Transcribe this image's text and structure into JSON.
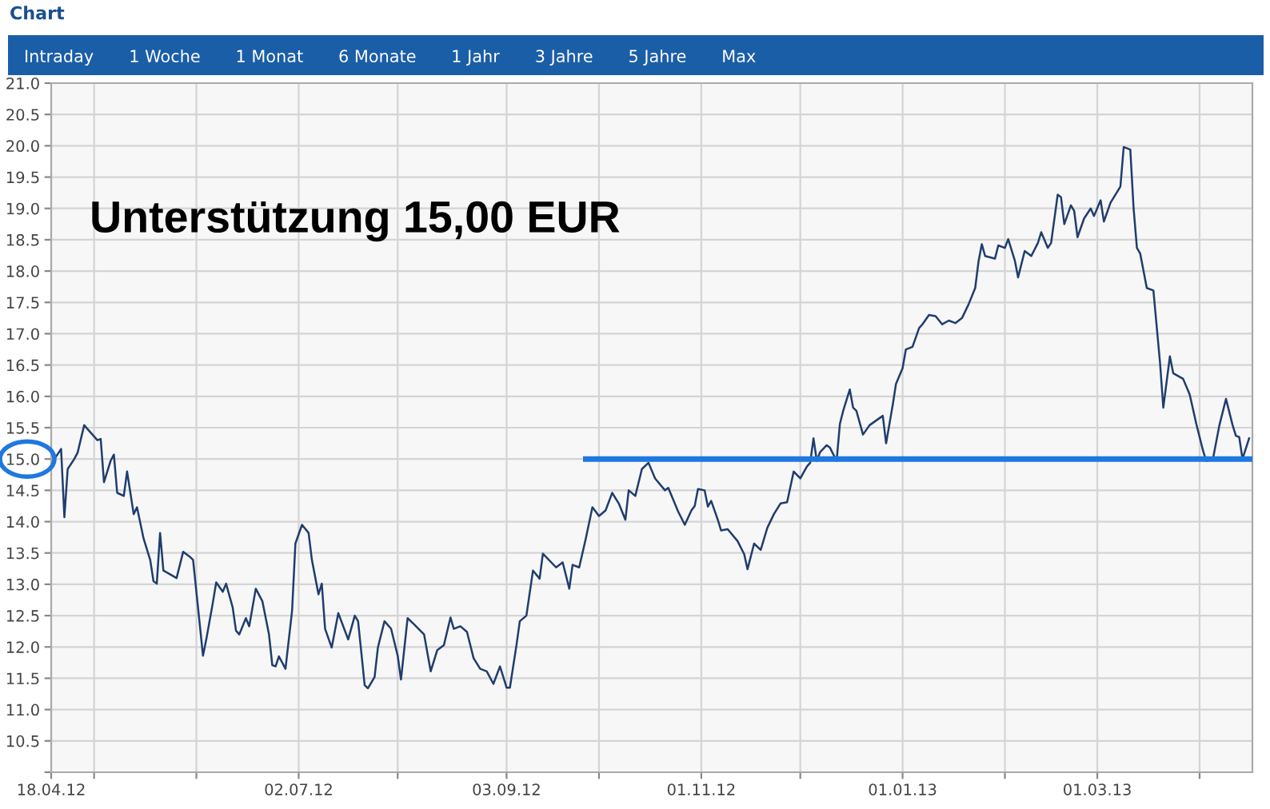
{
  "chart_data": {
    "type": "line",
    "title": "Chart",
    "annotations": [
      "Unterstützung 15,00 EUR",
      "Intraday",
      "1 Woche",
      "1 Monat",
      "6 Monate",
      "1 Jahr",
      "3 Jahre",
      "5 Jahre",
      "Max"
    ],
    "series": [
      {
        "color": "#1f3d6e",
        "x": [
          "2012-04-18",
          "2012-04-19",
          "2012-04-21",
          "2012-04-22",
          "2012-04-23",
          "2012-04-25",
          "2012-04-26",
          "2012-04-28",
          "2012-04-29",
          "2012-05-02",
          "2012-05-03",
          "2012-05-04",
          "2012-05-06",
          "2012-05-07",
          "2012-05-08",
          "2012-05-10",
          "2012-05-11",
          "2012-05-13",
          "2012-05-14",
          "2012-05-16",
          "2012-05-18",
          "2012-05-19",
          "2012-05-20",
          "2012-05-21",
          "2012-05-22",
          "2012-05-26",
          "2012-05-28",
          "2012-05-30",
          "2012-05-31",
          "2012-06-01",
          "2012-06-03",
          "2012-06-04",
          "2012-06-06",
          "2012-06-07",
          "2012-06-09",
          "2012-06-10",
          "2012-06-12",
          "2012-06-13",
          "2012-06-14",
          "2012-06-16",
          "2012-06-17",
          "2012-06-19",
          "2012-06-21",
          "2012-06-23",
          "2012-06-24",
          "2012-06-25",
          "2012-06-26",
          "2012-06-28",
          "2012-06-30",
          "2012-07-01",
          "2012-07-03",
          "2012-07-05",
          "2012-07-06",
          "2012-07-08",
          "2012-07-09",
          "2012-07-10",
          "2012-07-12",
          "2012-07-14",
          "2012-07-17",
          "2012-07-19",
          "2012-07-20",
          "2012-07-22",
          "2012-07-23",
          "2012-07-25",
          "2012-07-26",
          "2012-07-28",
          "2012-07-30",
          "2012-08-01",
          "2012-08-02",
          "2012-08-04",
          "2012-08-06",
          "2012-08-09",
          "2012-08-11",
          "2012-08-13",
          "2012-08-15",
          "2012-08-17",
          "2012-08-18",
          "2012-08-20",
          "2012-08-22",
          "2012-08-24",
          "2012-08-26",
          "2012-08-28",
          "2012-08-30",
          "2012-09-01",
          "2012-09-03",
          "2012-09-04",
          "2012-09-06",
          "2012-09-07",
          "2012-09-09",
          "2012-09-11",
          "2012-09-13",
          "2012-09-14",
          "2012-09-18",
          "2012-09-20",
          "2012-09-22",
          "2012-09-23",
          "2012-09-25",
          "2012-09-27",
          "2012-09-29",
          "2012-10-01",
          "2012-10-03",
          "2012-10-05",
          "2012-10-07",
          "2012-10-09",
          "2012-10-10",
          "2012-10-12",
          "2012-10-14",
          "2012-10-16",
          "2012-10-18",
          "2012-10-21",
          "2012-10-22",
          "2012-10-25",
          "2012-10-27",
          "2012-10-29",
          "2012-10-30",
          "2012-10-31",
          "2012-11-02",
          "2012-11-03",
          "2012-11-04",
          "2012-11-06",
          "2012-11-07",
          "2012-11-09",
          "2012-11-12",
          "2012-11-14",
          "2012-11-15",
          "2012-11-17",
          "2012-11-19",
          "2012-11-21",
          "2012-11-23",
          "2012-11-25",
          "2012-11-27",
          "2012-11-29",
          "2012-12-01",
          "2012-12-03",
          "2012-12-04",
          "2012-12-05",
          "2012-12-06",
          "2012-12-07",
          "2012-12-09",
          "2012-12-10",
          "2012-12-12",
          "2012-12-13",
          "2012-12-14",
          "2012-12-16",
          "2012-12-17",
          "2012-12-18",
          "2012-12-20",
          "2012-12-22",
          "2012-12-26",
          "2012-12-27",
          "2012-12-29",
          "2012-12-30",
          "2013-01-01",
          "2013-01-02",
          "2013-01-04",
          "2013-01-06",
          "2013-01-07",
          "2013-01-09",
          "2013-01-11",
          "2013-01-13",
          "2013-01-15",
          "2013-01-17",
          "2013-01-19",
          "2013-01-21",
          "2013-01-23",
          "2013-01-24",
          "2013-01-25",
          "2013-01-26",
          "2013-01-29",
          "2013-01-30",
          "2013-02-01",
          "2013-02-02",
          "2013-02-04",
          "2013-02-05",
          "2013-02-07",
          "2013-02-09",
          "2013-02-11",
          "2013-02-12",
          "2013-02-14",
          "2013-02-15",
          "2013-02-17",
          "2013-02-18",
          "2013-02-19",
          "2013-02-21",
          "2013-02-22",
          "2013-02-23",
          "2013-02-25",
          "2013-02-27",
          "2013-02-28",
          "2013-03-02",
          "2013-03-03",
          "2013-03-05",
          "2013-03-08",
          "2013-03-09",
          "2013-03-11",
          "2013-03-12",
          "2013-03-13",
          "2013-03-14",
          "2013-03-16",
          "2013-03-18",
          "2013-03-20",
          "2013-03-21",
          "2013-03-23",
          "2013-03-24",
          "2013-03-27",
          "2013-03-29",
          "2013-03-31",
          "2013-04-02",
          "2013-04-03",
          "2013-04-05",
          "2013-04-07",
          "2013-04-09",
          "2013-04-11",
          "2013-04-12",
          "2013-04-13",
          "2013-04-14",
          "2013-04-16"
        ],
        "values": [
          14.88,
          15.0,
          15.16,
          14.07,
          14.84,
          15.0,
          15.1,
          15.54,
          15.48,
          15.3,
          15.32,
          14.63,
          14.97,
          15.07,
          14.46,
          14.41,
          14.8,
          14.12,
          14.23,
          13.73,
          13.39,
          13.05,
          13.01,
          13.82,
          13.22,
          13.1,
          13.52,
          13.44,
          13.39,
          12.88,
          11.86,
          12.12,
          12.71,
          13.03,
          12.88,
          13.01,
          12.63,
          12.26,
          12.2,
          12.46,
          12.33,
          12.93,
          12.73,
          12.2,
          11.71,
          11.69,
          11.85,
          11.65,
          12.58,
          13.65,
          13.95,
          13.82,
          13.39,
          12.84,
          13.01,
          12.29,
          11.99,
          12.54,
          12.12,
          12.5,
          12.41,
          11.39,
          11.34,
          11.52,
          11.99,
          12.41,
          12.29,
          11.86,
          11.48,
          12.46,
          12.36,
          12.2,
          11.61,
          11.95,
          12.03,
          12.47,
          12.29,
          12.33,
          12.24,
          11.82,
          11.65,
          11.61,
          11.41,
          11.69,
          11.35,
          11.35,
          12.03,
          12.41,
          12.5,
          13.22,
          13.09,
          13.49,
          13.27,
          13.35,
          12.93,
          13.31,
          13.27,
          13.73,
          14.23,
          14.09,
          14.18,
          14.46,
          14.29,
          14.03,
          14.5,
          14.41,
          14.84,
          14.94,
          14.69,
          14.5,
          14.54,
          14.16,
          13.95,
          14.18,
          14.25,
          14.52,
          14.5,
          14.24,
          14.33,
          14.03,
          13.86,
          13.88,
          13.69,
          13.48,
          13.24,
          13.65,
          13.55,
          13.9,
          14.12,
          14.29,
          14.31,
          14.8,
          14.69,
          14.88,
          14.94,
          15.33,
          14.97,
          15.11,
          15.22,
          15.18,
          14.97,
          15.56,
          15.77,
          16.11,
          15.82,
          15.77,
          15.39,
          15.54,
          15.69,
          15.25,
          15.86,
          16.2,
          16.45,
          16.75,
          16.79,
          17.09,
          17.15,
          17.3,
          17.28,
          17.15,
          17.21,
          17.17,
          17.25,
          17.47,
          17.73,
          18.15,
          18.43,
          18.24,
          18.2,
          18.41,
          18.37,
          18.51,
          18.17,
          17.9,
          18.32,
          18.24,
          18.45,
          18.62,
          18.37,
          18.45,
          19.22,
          19.18,
          18.75,
          19.05,
          18.96,
          18.54,
          18.84,
          19.0,
          18.88,
          19.13,
          18.79,
          19.09,
          19.35,
          19.98,
          19.94,
          19.0,
          18.37,
          18.28,
          17.73,
          17.69,
          16.54,
          15.82,
          16.64,
          16.37,
          16.28,
          16.03,
          15.56,
          15.14,
          14.97,
          14.99,
          15.54,
          15.96,
          15.54,
          15.37,
          15.35,
          15.0,
          15.33
        ]
      },
      {
        "color": "#1e78e0",
        "x": [
          "2012-09-27",
          "2013-04-17"
        ],
        "values": [
          15.0,
          15.0
        ]
      }
    ],
    "xlim": [
      "2012-04-18",
      "2013-04-17"
    ],
    "xticks": [
      {
        "value": "2012-04-18",
        "label": "18.04.12"
      },
      {
        "value": "2012-05-01",
        "label": null
      },
      {
        "value": "2012-06-01",
        "label": null
      },
      {
        "value": "2012-07-02",
        "label": "02.07.12"
      },
      {
        "value": "2012-08-01",
        "label": null
      },
      {
        "value": "2012-09-03",
        "label": "03.09.12"
      },
      {
        "value": "2012-10-01",
        "label": null
      },
      {
        "value": "2012-11-01",
        "label": "01.11.12"
      },
      {
        "value": "2012-12-01",
        "label": null
      },
      {
        "value": "2013-01-01",
        "label": "01.01.13"
      },
      {
        "value": "2013-02-01",
        "label": null
      },
      {
        "value": "2013-03-01",
        "label": "01.03.13"
      },
      {
        "value": "2013-04-01",
        "label": null
      }
    ],
    "ylim": [
      10,
      21
    ],
    "yticks": [
      {
        "value": 10,
        "label": null
      },
      {
        "value": 10.5,
        "label": "10.5"
      },
      {
        "value": 11,
        "label": "11.0"
      },
      {
        "value": 11.5,
        "label": "11.5"
      },
      {
        "value": 12,
        "label": "12.0"
      },
      {
        "value": 12.5,
        "label": "12.5"
      },
      {
        "value": 13,
        "label": "13.0"
      },
      {
        "value": 13.5,
        "label": "13.5"
      },
      {
        "value": 14,
        "label": "14.0"
      },
      {
        "value": 14.5,
        "label": "14.5"
      },
      {
        "value": 15,
        "label": "15.0"
      },
      {
        "value": 15.5,
        "label": "15.5"
      },
      {
        "value": 16,
        "label": "16.0"
      },
      {
        "value": 16.5,
        "label": "16.5"
      },
      {
        "value": 17,
        "label": "17.0"
      },
      {
        "value": 17.5,
        "label": "17.5"
      },
      {
        "value": 18,
        "label": "18.0"
      },
      {
        "value": 18.5,
        "label": "18.5"
      },
      {
        "value": 19,
        "label": "19.0"
      },
      {
        "value": 19.5,
        "label": "19.5"
      },
      {
        "value": 20,
        "label": "20.0"
      },
      {
        "value": 20.5,
        "label": "20.5"
      },
      {
        "value": 21,
        "label": "21.0"
      }
    ],
    "grid": true
  }
}
